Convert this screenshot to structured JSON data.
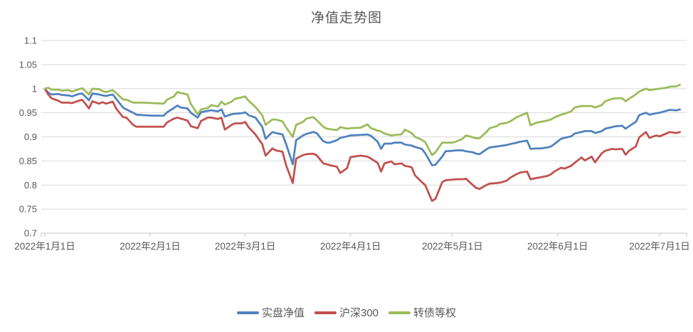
{
  "page": {
    "background": "#FFFFFF"
  },
  "chart": {
    "title_color": "#595959",
    "grid_color": "#D9D9D9",
    "axis_color": "#C6C6C6",
    "label_color": "#595959"
  },
  "chart_data": {
    "type": "line",
    "title": "净值走势图",
    "grid": "horizontal",
    "legend_position": "bottom",
    "x_axis": {
      "start_date": "2022-01-01",
      "x_unit": "days since 2022-01-01",
      "tick_labels": [
        "2022年1月1日",
        "2022年2月1日",
        "2022年3月1日",
        "2022年4月1日",
        "2022年5月1日",
        "2022年6月1日",
        "2022年7月1日"
      ],
      "tick_day_offsets": [
        0,
        31,
        59,
        90,
        120,
        151,
        181
      ],
      "max_day_offset": 187
    },
    "y_axis": {
      "min": 0.7,
      "max": 1.1,
      "ticks": [
        1.1,
        1.05,
        1.0,
        0.95,
        0.9,
        0.85,
        0.8,
        0.75,
        0.7
      ],
      "tick_labels": [
        "1.1",
        "1.05",
        "1",
        "0.95",
        "0.9",
        "0.85",
        "0.8",
        "0.75",
        "0.7"
      ]
    },
    "day_offsets": [
      0,
      1,
      2,
      4,
      5,
      7,
      8,
      10,
      11,
      13,
      14,
      16,
      17,
      18,
      20,
      21,
      23,
      24,
      26,
      27,
      29,
      32,
      35,
      36,
      38,
      39,
      40,
      42,
      43,
      45,
      46,
      48,
      49,
      51,
      52,
      53,
      55,
      56,
      58,
      59,
      60,
      62,
      64,
      65,
      67,
      68,
      70,
      71,
      73,
      74,
      76,
      77,
      79,
      80,
      82,
      83,
      84,
      86,
      87,
      89,
      90,
      93,
      95,
      96,
      98,
      99,
      100,
      102,
      103,
      105,
      106,
      108,
      109,
      111,
      112,
      114,
      115,
      117,
      118,
      120,
      121,
      123,
      124,
      126,
      127,
      128,
      130,
      131,
      133,
      134,
      136,
      137,
      139,
      140,
      142,
      143,
      145,
      146,
      148,
      149,
      150,
      152,
      153,
      155,
      156,
      158,
      159,
      161,
      162,
      164,
      165,
      167,
      168,
      170,
      171,
      172,
      174,
      175,
      177,
      178,
      180,
      181,
      183,
      184,
      186,
      187
    ],
    "series": [
      {
        "name": "实盘净值",
        "color": "#4F81BD",
        "values": [
          1.0,
          0.992,
          0.988,
          0.989,
          0.987,
          0.986,
          0.984,
          0.989,
          0.99,
          0.976,
          0.99,
          0.988,
          0.986,
          0.985,
          0.988,
          0.979,
          0.961,
          0.957,
          0.95,
          0.946,
          0.945,
          0.944,
          0.944,
          0.951,
          0.96,
          0.965,
          0.961,
          0.959,
          0.95,
          0.94,
          0.951,
          0.954,
          0.955,
          0.953,
          0.957,
          0.942,
          0.947,
          0.948,
          0.949,
          0.951,
          0.945,
          0.94,
          0.921,
          0.896,
          0.91,
          0.908,
          0.905,
          0.886,
          0.843,
          0.893,
          0.903,
          0.906,
          0.91,
          0.908,
          0.891,
          0.888,
          0.888,
          0.893,
          0.898,
          0.901,
          0.903,
          0.904,
          0.905,
          0.902,
          0.89,
          0.875,
          0.886,
          0.886,
          0.888,
          0.888,
          0.884,
          0.882,
          0.879,
          0.875,
          0.866,
          0.841,
          0.842,
          0.859,
          0.87,
          0.871,
          0.872,
          0.872,
          0.87,
          0.868,
          0.865,
          0.864,
          0.874,
          0.878,
          0.88,
          0.881,
          0.883,
          0.885,
          0.888,
          0.89,
          0.892,
          0.875,
          0.876,
          0.876,
          0.878,
          0.88,
          0.885,
          0.896,
          0.898,
          0.901,
          0.907,
          0.91,
          0.912,
          0.912,
          0.908,
          0.912,
          0.917,
          0.92,
          0.922,
          0.923,
          0.917,
          0.922,
          0.931,
          0.945,
          0.95,
          0.946,
          0.949,
          0.95,
          0.954,
          0.956,
          0.955,
          0.957
        ]
      },
      {
        "name": "沪深300",
        "color": "#C0504D",
        "values": [
          1.0,
          0.988,
          0.98,
          0.975,
          0.971,
          0.971,
          0.97,
          0.975,
          0.977,
          0.959,
          0.974,
          0.969,
          0.972,
          0.969,
          0.973,
          0.959,
          0.941,
          0.94,
          0.925,
          0.921,
          0.921,
          0.921,
          0.921,
          0.93,
          0.938,
          0.94,
          0.938,
          0.934,
          0.922,
          0.918,
          0.933,
          0.94,
          0.94,
          0.937,
          0.94,
          0.915,
          0.925,
          0.928,
          0.928,
          0.931,
          0.92,
          0.905,
          0.885,
          0.861,
          0.876,
          0.872,
          0.869,
          0.842,
          0.804,
          0.855,
          0.862,
          0.864,
          0.865,
          0.862,
          0.845,
          0.843,
          0.841,
          0.838,
          0.825,
          0.835,
          0.858,
          0.861,
          0.859,
          0.855,
          0.846,
          0.828,
          0.845,
          0.849,
          0.843,
          0.845,
          0.84,
          0.837,
          0.82,
          0.806,
          0.8,
          0.767,
          0.771,
          0.806,
          0.81,
          0.811,
          0.812,
          0.812,
          0.813,
          0.8,
          0.794,
          0.792,
          0.8,
          0.803,
          0.804,
          0.805,
          0.809,
          0.815,
          0.823,
          0.826,
          0.828,
          0.812,
          0.815,
          0.816,
          0.819,
          0.822,
          0.828,
          0.836,
          0.834,
          0.84,
          0.846,
          0.857,
          0.851,
          0.859,
          0.847,
          0.866,
          0.871,
          0.875,
          0.874,
          0.875,
          0.863,
          0.871,
          0.88,
          0.899,
          0.91,
          0.898,
          0.903,
          0.901,
          0.907,
          0.91,
          0.908,
          0.91
        ]
      },
      {
        "name": "转债等权",
        "color": "#9BBB59",
        "values": [
          1.0,
          1.002,
          0.998,
          0.998,
          0.996,
          0.997,
          0.994,
          0.999,
          1.001,
          0.988,
          1.0,
          0.999,
          0.995,
          0.993,
          0.997,
          0.991,
          0.978,
          0.977,
          0.971,
          0.971,
          0.971,
          0.97,
          0.969,
          0.977,
          0.984,
          0.993,
          0.991,
          0.988,
          0.968,
          0.947,
          0.957,
          0.96,
          0.966,
          0.963,
          0.973,
          0.967,
          0.973,
          0.979,
          0.982,
          0.984,
          0.975,
          0.962,
          0.945,
          0.925,
          0.936,
          0.936,
          0.932,
          0.92,
          0.9,
          0.925,
          0.931,
          0.938,
          0.941,
          0.935,
          0.921,
          0.917,
          0.916,
          0.914,
          0.92,
          0.917,
          0.918,
          0.919,
          0.926,
          0.918,
          0.913,
          0.911,
          0.907,
          0.903,
          0.904,
          0.905,
          0.915,
          0.908,
          0.9,
          0.894,
          0.889,
          0.862,
          0.868,
          0.888,
          0.888,
          0.888,
          0.89,
          0.896,
          0.903,
          0.899,
          0.897,
          0.897,
          0.91,
          0.918,
          0.922,
          0.927,
          0.929,
          0.932,
          0.941,
          0.944,
          0.95,
          0.924,
          0.93,
          0.931,
          0.934,
          0.936,
          0.94,
          0.946,
          0.948,
          0.953,
          0.961,
          0.964,
          0.964,
          0.964,
          0.961,
          0.966,
          0.974,
          0.979,
          0.98,
          0.98,
          0.974,
          0.979,
          0.988,
          0.994,
          1.0,
          0.997,
          0.999,
          1.0,
          1.002,
          1.004,
          1.005,
          1.008
        ]
      }
    ]
  }
}
